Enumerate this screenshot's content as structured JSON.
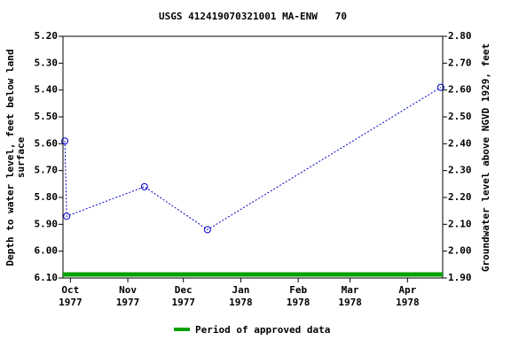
{
  "chart_data": {
    "type": "line",
    "title": "USGS 412419070321001 MA-ENW   70",
    "y_label": [
      "Depth to water level, feet below land",
      "surface"
    ],
    "y2_label": "Groundwater level above NGVD 1929, feet",
    "x": [
      "1977-09-28",
      "1977-09-29",
      "1977-11-10",
      "1977-12-14",
      "1978-04-19"
    ],
    "series": [
      {
        "name": "Depth to water level",
        "color": "#0000c8",
        "values": [
          5.59,
          5.87,
          5.76,
          5.92,
          5.39
        ]
      }
    ],
    "xlim": [
      "1977-09-27",
      "1978-04-20"
    ],
    "xticks": [
      {
        "value": "1977-10-01",
        "label": [
          "Oct",
          "1977"
        ]
      },
      {
        "value": "1977-11-01",
        "label": [
          "Nov",
          "1977"
        ]
      },
      {
        "value": "1977-12-01",
        "label": [
          "Dec",
          "1977"
        ]
      },
      {
        "value": "1978-01-01",
        "label": [
          "Jan",
          "1978"
        ]
      },
      {
        "value": "1978-02-01",
        "label": [
          "Feb",
          "1978"
        ]
      },
      {
        "value": "1978-03-01",
        "label": [
          "Mar",
          "1978"
        ]
      },
      {
        "value": "1978-04-01",
        "label": [
          "Apr",
          "1978"
        ]
      }
    ],
    "ylim": [
      6.1,
      5.2
    ],
    "yticks": [
      {
        "value": 5.2,
        "label": "5.20"
      },
      {
        "value": 5.3,
        "label": "5.30"
      },
      {
        "value": 5.4,
        "label": "5.40"
      },
      {
        "value": 5.5,
        "label": "5.50"
      },
      {
        "value": 5.6,
        "label": "5.60"
      },
      {
        "value": 5.7,
        "label": "5.70"
      },
      {
        "value": 5.8,
        "label": "5.80"
      },
      {
        "value": 5.9,
        "label": "5.90"
      },
      {
        "value": 6.0,
        "label": "6.00"
      },
      {
        "value": 6.1,
        "label": "6.10"
      }
    ],
    "y2lim": [
      1.9,
      2.8
    ],
    "y2ticks": [
      {
        "value": 2.8,
        "label": "2.80"
      },
      {
        "value": 2.7,
        "label": "2.70"
      },
      {
        "value": 2.6,
        "label": "2.60"
      },
      {
        "value": 2.5,
        "label": "2.50"
      },
      {
        "value": 2.4,
        "label": "2.40"
      },
      {
        "value": 2.3,
        "label": "2.30"
      },
      {
        "value": 2.2,
        "label": "2.20"
      },
      {
        "value": 2.1,
        "label": "2.10"
      },
      {
        "value": 2.0,
        "label": "2.00"
      },
      {
        "value": 1.9,
        "label": "1.90"
      }
    ],
    "approved_period": {
      "name": "Period of approved data",
      "color": "#00a000",
      "x": [
        "1977-09-27",
        "1978-04-20"
      ]
    }
  }
}
